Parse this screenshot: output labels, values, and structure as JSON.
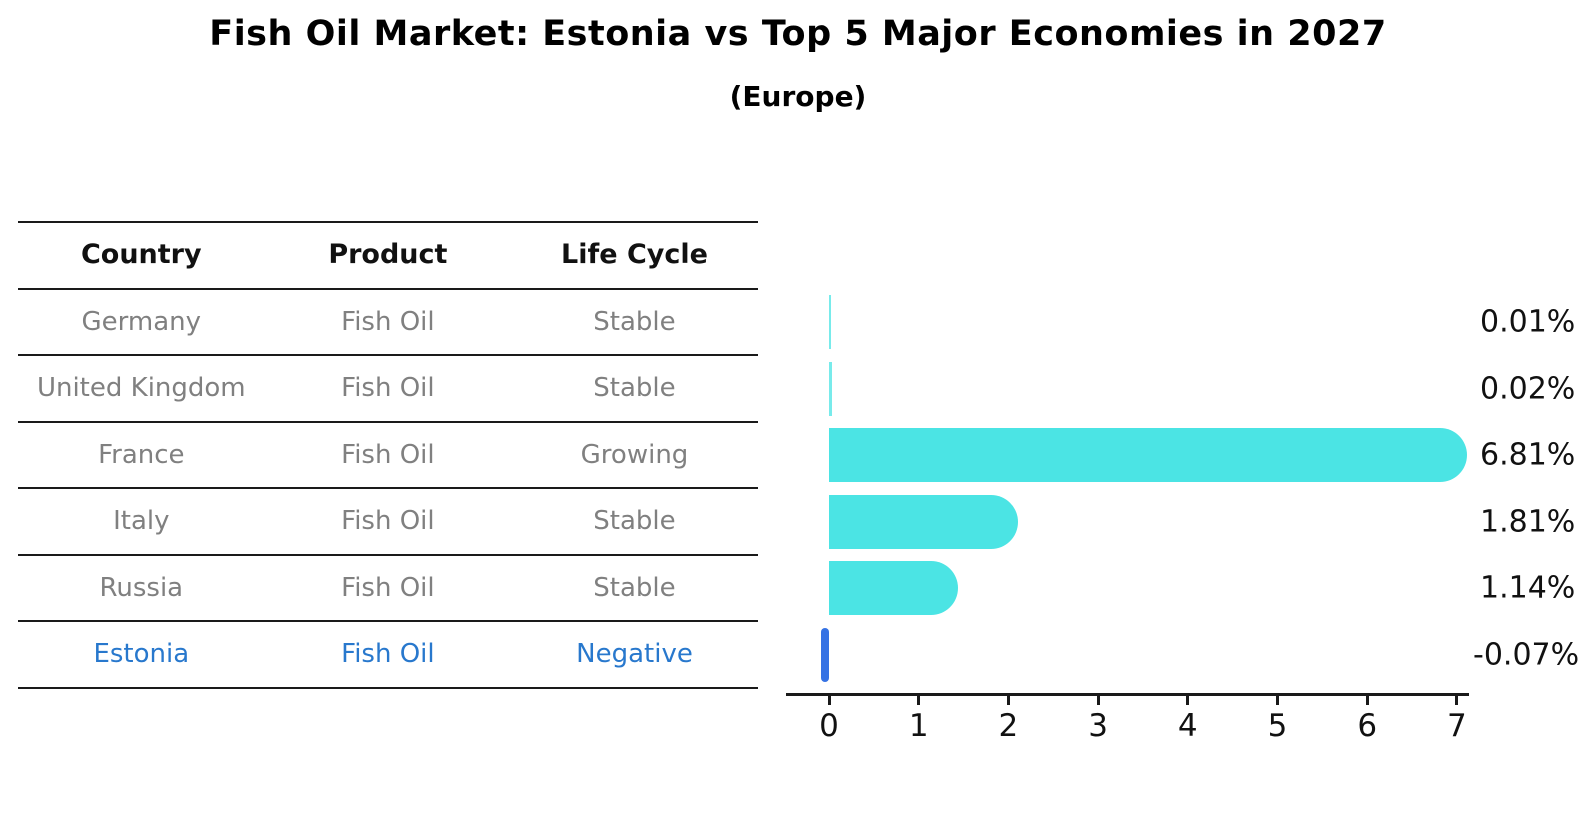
{
  "title": "Fish Oil Market: Estonia vs Top 5 Major Economies in 2027",
  "subtitle": "(Europe)",
  "table": {
    "headers": {
      "country": "Country",
      "product": "Product",
      "life_cycle": "Life Cycle"
    },
    "rows": [
      {
        "country": "Germany",
        "product": "Fish Oil",
        "life_cycle": "Stable",
        "highlight": false
      },
      {
        "country": "United Kingdom",
        "product": "Fish Oil",
        "life_cycle": "Stable",
        "highlight": false
      },
      {
        "country": "France",
        "product": "Fish Oil",
        "life_cycle": "Growing",
        "highlight": false
      },
      {
        "country": "Italy",
        "product": "Fish Oil",
        "life_cycle": "Stable",
        "highlight": false
      },
      {
        "country": "Russia",
        "product": "Fish Oil",
        "life_cycle": "Stable",
        "highlight": false
      },
      {
        "country": "Estonia",
        "product": "Fish Oil",
        "life_cycle": "Negative",
        "highlight": true
      }
    ]
  },
  "chart_data": {
    "type": "bar",
    "orientation": "horizontal",
    "title": "Fish Oil Market: Estonia vs Top 5 Major Economies in 2027",
    "subtitle": "(Europe)",
    "categories": [
      "Germany",
      "United Kingdom",
      "France",
      "Italy",
      "Russia",
      "Estonia"
    ],
    "values": [
      0.01,
      0.02,
      6.81,
      1.81,
      1.14,
      -0.07
    ],
    "value_labels": [
      "0.01%",
      "0.02%",
      "6.81%",
      "1.81%",
      "1.14%",
      "-0.07%"
    ],
    "xlabel": "",
    "ylabel": "",
    "xlim": [
      0,
      7
    ],
    "xticks": [
      0,
      1,
      2,
      3,
      4,
      5,
      6,
      7
    ],
    "grid": false,
    "legend": "none",
    "bar_color": "#4be4e4",
    "highlight_color": "#3572e4"
  },
  "colors": {
    "bar": "#4be4e4",
    "highlight_bar": "#3572e4",
    "highlight_text": "#2878cd",
    "row_text": "#808080",
    "header_text": "#111111",
    "axis": "#1a1a1a",
    "background": "#ffffff"
  }
}
